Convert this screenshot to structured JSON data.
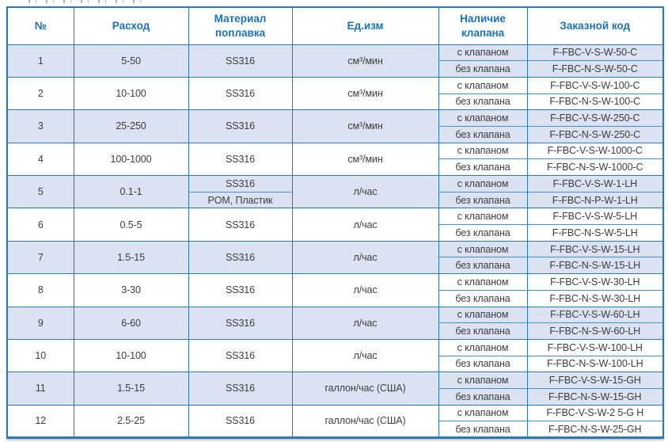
{
  "colors": {
    "border": "#2e77b5",
    "divider": "#4b8fc9",
    "header_text": "#1b72bb",
    "body_text": "#3d3d3d",
    "stripe": "#dbe2f1",
    "background": "#ffffff"
  },
  "table": {
    "headers": {
      "num": "№",
      "flow": "Расход",
      "material": "Материал поплавка",
      "unit": "Ед.изм",
      "valve": "Наличие клапана",
      "code": "Заказной код"
    },
    "valve_options": {
      "with": "с клапаном",
      "without": "без клапана"
    },
    "rows": [
      {
        "num": "1",
        "flow": "5-50",
        "materials": [
          "SS316"
        ],
        "unit": "см³/мин",
        "code_with": "F-FBC-V-S-W-50-C",
        "code_without": "F-FBC-N-S-W-50-C"
      },
      {
        "num": "2",
        "flow": "10-100",
        "materials": [
          "SS316"
        ],
        "unit": "см³/мин",
        "code_with": "F-FBC-V-S-W-100-C",
        "code_without": "F-FBC-N-S-W-100-C"
      },
      {
        "num": "3",
        "flow": "25-250",
        "materials": [
          "SS316"
        ],
        "unit": "см³/мин",
        "code_with": "F-FBC-V-S-W-250-C",
        "code_without": "F-FBC-N-S-W-250-C"
      },
      {
        "num": "4",
        "flow": "100-1000",
        "materials": [
          "SS316"
        ],
        "unit": "см³/мин",
        "code_with": "F-FBC-V-S-W-1000-C",
        "code_without": "F-FBC-N-S-W-1000-C"
      },
      {
        "num": "5",
        "flow": "0.1-1",
        "materials": [
          "SS316",
          "POM, Пластик"
        ],
        "unit": "л/час",
        "code_with": "F-FBC-V-S-W-1-LH",
        "code_without": "F-FBC-N-P-W-1-LH"
      },
      {
        "num": "6",
        "flow": "0.5-5",
        "materials": [
          "SS316"
        ],
        "unit": "л/час",
        "code_with": "F-FBC-V-S-W-5-LH",
        "code_without": "F-FBC-N-S-W-5-LH"
      },
      {
        "num": "7",
        "flow": "1.5-15",
        "materials": [
          "SS316"
        ],
        "unit": "л/час",
        "code_with": "F-FBC-V-S-W-15-LH",
        "code_without": "F-FBC-N-S-W-15-LH"
      },
      {
        "num": "8",
        "flow": "3-30",
        "materials": [
          "SS316"
        ],
        "unit": "л/час",
        "code_with": "F-FBC-V-S-W-30-LH",
        "code_without": "F-FBC-N-S-W-30-LH"
      },
      {
        "num": "9",
        "flow": "6-60",
        "materials": [
          "SS316"
        ],
        "unit": "л/час",
        "code_with": "F-FBC-V-S-W-60-LH",
        "code_without": "F-FBC-N-S-W-60-LH"
      },
      {
        "num": "10",
        "flow": "10-100",
        "materials": [
          "SS316"
        ],
        "unit": "л/час",
        "code_with": "F-FBC-V-S-W-100-LH",
        "code_without": "F-FBC-N-S-W-100-LH"
      },
      {
        "num": "11",
        "flow": "1.5-15",
        "materials": [
          "SS316"
        ],
        "unit": "галлон/час (США)",
        "code_with": "F-FBC-V-S-W-15-GH",
        "code_without": "F-FBC-N-S-W-15-GH"
      },
      {
        "num": "12",
        "flow": "2.5-25",
        "materials": [
          "SS316"
        ],
        "unit": "галлон/час (США)",
        "code_with": "F-FBC-V-S-W-2 5-G H",
        "code_without": "F-FBC-N-S-W-25-GH"
      }
    ]
  }
}
